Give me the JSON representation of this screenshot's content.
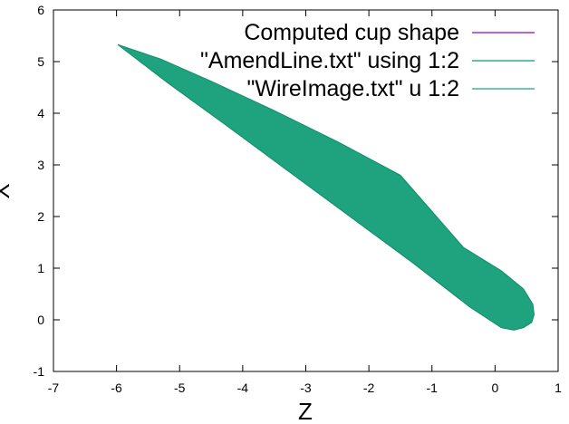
{
  "chart_data": {
    "type": "line",
    "xlabel": "Z",
    "ylabel": "X",
    "xlim": [
      -7,
      1
    ],
    "ylim": [
      -1,
      6
    ],
    "x_ticks": [
      -7,
      -6,
      -5,
      -4,
      -3,
      -2,
      -1,
      0,
      1
    ],
    "y_ticks": [
      -1,
      0,
      1,
      2,
      3,
      4,
      5,
      6
    ],
    "grid": false,
    "legend_position": "top-right",
    "series": [
      {
        "name": "Computed cup shape",
        "color": "#9400d3",
        "style": "line",
        "x": [],
        "y": []
      },
      {
        "name": "\"AmendLine.txt\" using 1:2",
        "color": "#009e73",
        "style": "line",
        "x": [],
        "y": []
      },
      {
        "name": "\"WireImage.txt\" u 1:2",
        "color": "#1fa27e",
        "style": "filled-band",
        "outline": {
          "x": [
            -5.98,
            -5.3,
            -4.5,
            -3.5,
            -2.5,
            -1.5,
            -0.5,
            0.1,
            0.45,
            0.6,
            0.62,
            0.58,
            0.45,
            0.3,
            0.1,
            -0.4,
            -1.3,
            -2.3,
            -3.3,
            -4.3,
            -5.2,
            -5.98
          ],
          "y": [
            5.33,
            5.05,
            4.62,
            4.05,
            3.45,
            2.8,
            1.4,
            0.95,
            0.6,
            0.3,
            0.1,
            -0.05,
            -0.15,
            -0.2,
            -0.15,
            0.25,
            1.1,
            2.0,
            2.9,
            3.8,
            4.6,
            5.33
          ]
        }
      }
    ]
  }
}
